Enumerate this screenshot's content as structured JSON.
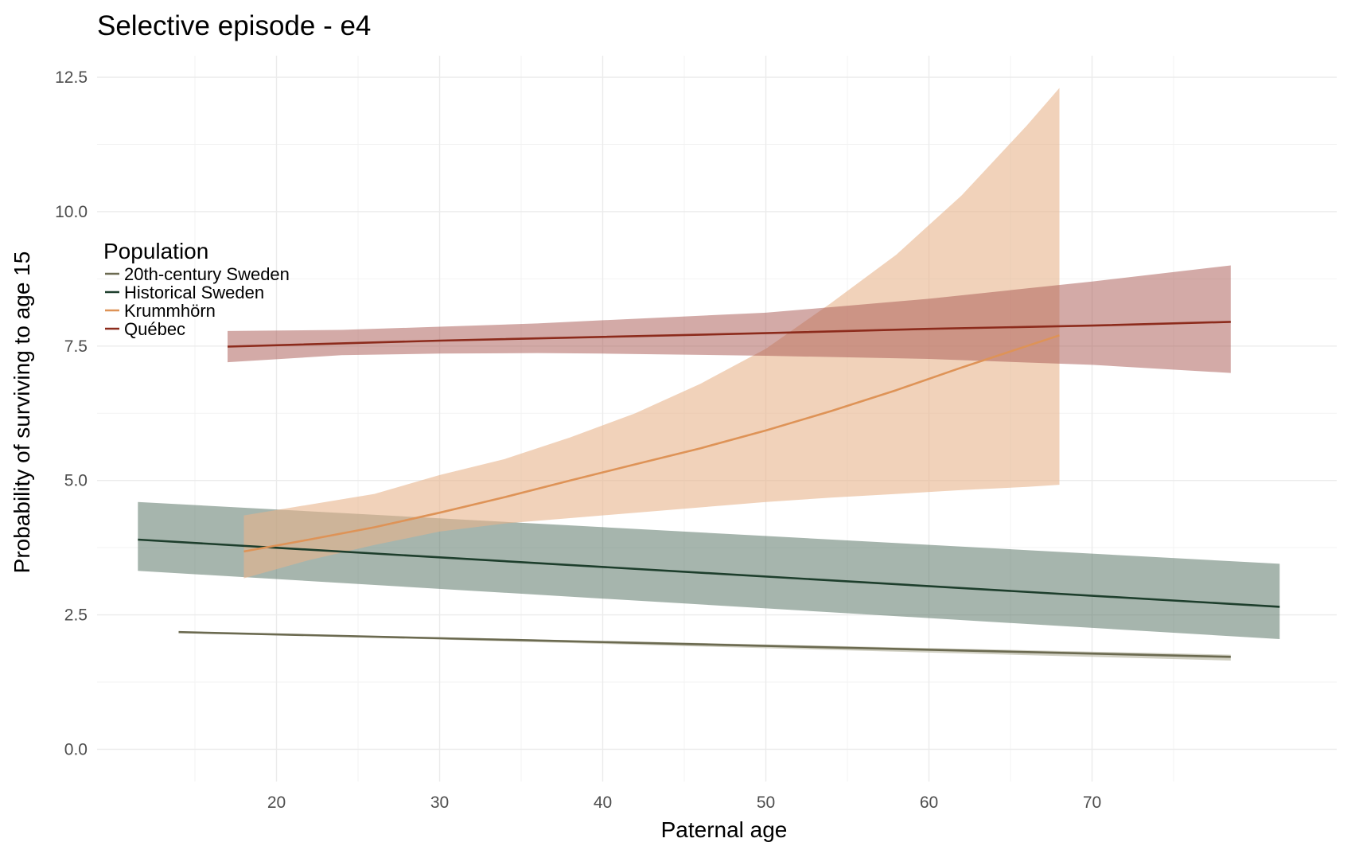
{
  "chart_data": {
    "type": "line",
    "title": "Selective episode - e4",
    "xlabel": "Paternal age",
    "ylabel": "Probability of surviving to age 15",
    "xlim": [
      9,
      85
    ],
    "ylim": [
      -0.6,
      12.9
    ],
    "x_ticks": [
      20,
      30,
      40,
      50,
      60,
      70
    ],
    "x_tick_labels": [
      "20",
      "30",
      "40",
      "50",
      "60",
      "70"
    ],
    "y_ticks": [
      0,
      2.5,
      5,
      7.5,
      10,
      12.5
    ],
    "y_tick_labels": [
      "0.0",
      "2.5",
      "5.0",
      "7.5",
      "10.0",
      "12.5"
    ],
    "grid": true,
    "legend": {
      "title": "Population",
      "position": "left",
      "entries": [
        "20th-century Sweden",
        "Historical Sweden",
        "Krummhörn",
        "Québec"
      ]
    },
    "series": [
      {
        "name": "20th-century Sweden",
        "color": "#6b6a50",
        "band_color": "#b3b09b",
        "band_opacity": 0.6,
        "x": [
          14,
          78.5
        ],
        "y": [
          2.18,
          1.72
        ],
        "band": {
          "x": [
            14,
            78.5
          ],
          "lower": [
            2.17,
            1.65
          ],
          "upper": [
            2.19,
            1.76
          ]
        }
      },
      {
        "name": "Historical Sweden",
        "color": "#1d3e2c",
        "band_color": "#4d6b5c",
        "band_opacity": 0.5,
        "x": [
          11.5,
          81.5
        ],
        "y": [
          3.9,
          2.65
        ],
        "band": {
          "x": [
            11.5,
            81.5
          ],
          "lower": [
            3.32,
            2.05
          ],
          "upper": [
            4.6,
            3.45
          ]
        }
      },
      {
        "name": "Krummhörn",
        "color": "#de9357",
        "band_color": "#e8b48c",
        "band_opacity": 0.6,
        "x": [
          18,
          22,
          26,
          30,
          34,
          38,
          42,
          46,
          50,
          54,
          58,
          62,
          66,
          68
        ],
        "y": [
          3.68,
          3.9,
          4.13,
          4.4,
          4.69,
          5.0,
          5.3,
          5.6,
          5.93,
          6.29,
          6.68,
          7.1,
          7.5,
          7.7
        ],
        "band": {
          "x": [
            18,
            22,
            26,
            30,
            34,
            38,
            42,
            46,
            50,
            54,
            58,
            62,
            66,
            68
          ],
          "lower": [
            3.18,
            3.52,
            3.8,
            4.05,
            4.2,
            4.3,
            4.4,
            4.5,
            4.6,
            4.68,
            4.75,
            4.82,
            4.88,
            4.92
          ],
          "upper": [
            4.35,
            4.55,
            4.75,
            5.1,
            5.4,
            5.8,
            6.25,
            6.8,
            7.45,
            8.3,
            9.2,
            10.3,
            11.6,
            12.3
          ]
        }
      },
      {
        "name": "Québec",
        "color": "#8c2b1c",
        "band_color": "#a8564f",
        "band_opacity": 0.5,
        "x": [
          17,
          30,
          40,
          50,
          60,
          70,
          78.5
        ],
        "y": [
          7.49,
          7.6,
          7.67,
          7.74,
          7.82,
          7.88,
          7.95
        ],
        "band": {
          "x": [
            17,
            24,
            30,
            36,
            40,
            50,
            60,
            70,
            78.5
          ],
          "lower": [
            7.2,
            7.33,
            7.36,
            7.37,
            7.36,
            7.32,
            7.26,
            7.15,
            7.0
          ],
          "upper": [
            7.78,
            7.8,
            7.86,
            7.92,
            7.98,
            8.12,
            8.38,
            8.7,
            9.0
          ]
        }
      }
    ]
  }
}
